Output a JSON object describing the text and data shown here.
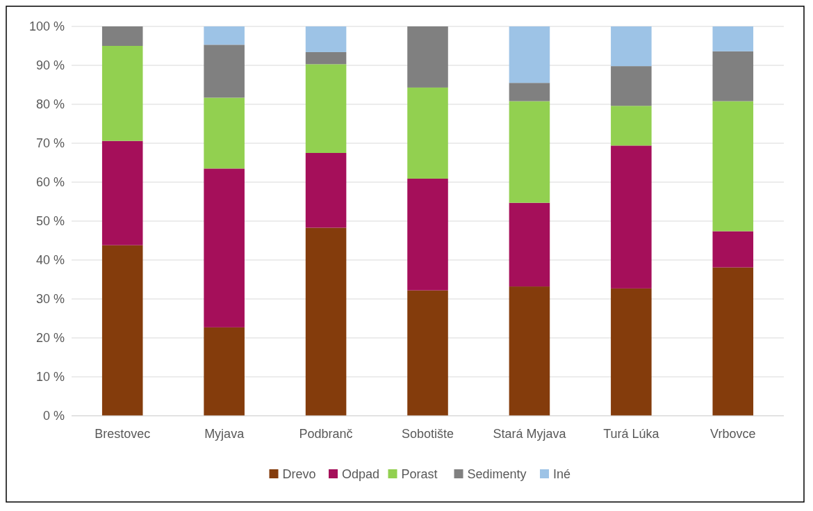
{
  "chart_data": {
    "type": "bar",
    "stacked": true,
    "categories": [
      "Brestovec",
      "Myjava",
      "Podbranč",
      "Sobotište",
      "Stará Myjava",
      "Turá Lúka",
      "Vrbovce"
    ],
    "series": [
      {
        "name": "Drevo",
        "color": "#843c0c",
        "values": [
          43.8,
          22.7,
          48.3,
          32.2,
          33.2,
          32.7,
          38.1
        ]
      },
      {
        "name": "Odpad",
        "color": "#a50f5a",
        "values": [
          26.8,
          40.8,
          19.2,
          28.7,
          21.5,
          36.7,
          9.3
        ]
      },
      {
        "name": "Porast",
        "color": "#92d050",
        "values": [
          24.4,
          18.2,
          22.8,
          23.4,
          26.1,
          10.2,
          33.4
        ]
      },
      {
        "name": "Sedimenty",
        "color": "#808080",
        "values": [
          5.0,
          13.6,
          3.1,
          15.7,
          4.7,
          10.2,
          12.8
        ]
      },
      {
        "name": "Iné",
        "color": "#9dc3e6",
        "values": [
          0,
          4.7,
          6.6,
          0,
          14.5,
          10.2,
          6.4
        ]
      }
    ],
    "ylim": [
      0,
      100
    ],
    "yticks": [
      {
        "value": 0,
        "label": "0 %"
      },
      {
        "value": 10,
        "label": "10 %"
      },
      {
        "value": 20,
        "label": "20 %"
      },
      {
        "value": 30,
        "label": "30 %"
      },
      {
        "value": 40,
        "label": "40 %"
      },
      {
        "value": 50,
        "label": "50 %"
      },
      {
        "value": 60,
        "label": "60 %"
      },
      {
        "value": 70,
        "label": "70 %"
      },
      {
        "value": 80,
        "label": "80 %"
      },
      {
        "value": 90,
        "label": "90 %"
      },
      {
        "value": 100,
        "label": "100 %"
      }
    ],
    "grid": "y",
    "legend": "bottom"
  }
}
